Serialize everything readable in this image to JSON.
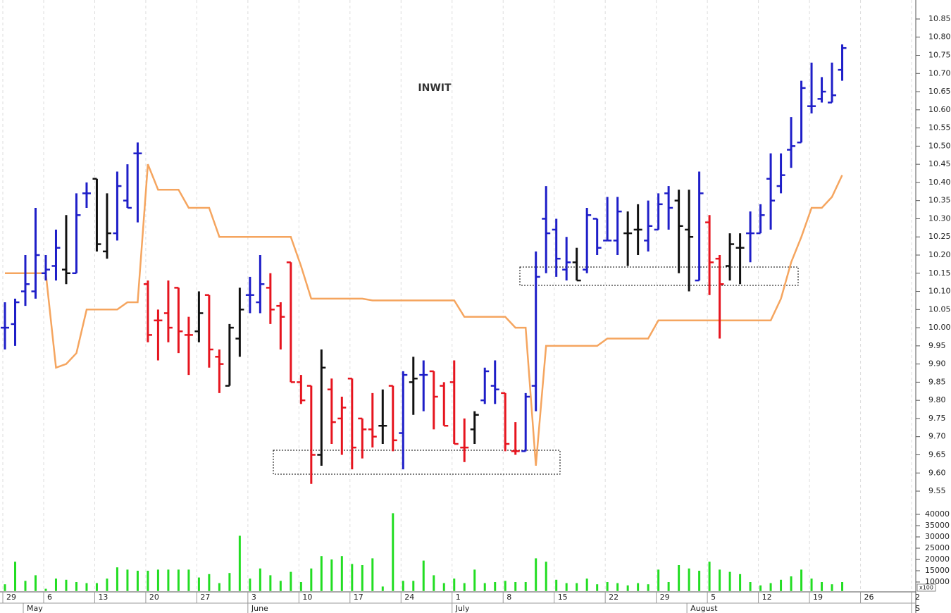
{
  "chart_data": {
    "type": "ohlc",
    "title": "INWIT",
    "categories": [
      "29",
      null,
      null,
      null,
      "6",
      null,
      null,
      null,
      null,
      "13",
      null,
      null,
      null,
      null,
      "20",
      null,
      null,
      null,
      null,
      "27",
      null,
      null,
      null,
      null,
      "3",
      null,
      null,
      null,
      null,
      "10",
      null,
      null,
      null,
      null,
      "17",
      null,
      null,
      null,
      null,
      "24",
      null,
      null,
      null,
      null,
      "1",
      null,
      null,
      null,
      null,
      "8",
      null,
      null,
      null,
      null,
      "15",
      null,
      null,
      null,
      null,
      "22",
      null,
      null,
      null,
      null,
      "29",
      null,
      null,
      null,
      null,
      "5",
      null,
      null,
      null,
      null,
      "12",
      null,
      null,
      null,
      null,
      "19",
      null,
      null,
      null,
      null,
      "26",
      null,
      null,
      null,
      null,
      "2"
    ],
    "months": [
      null,
      null,
      "May",
      null,
      null,
      null,
      null,
      null,
      null,
      null,
      null,
      null,
      null,
      null,
      null,
      null,
      null,
      null,
      null,
      null,
      null,
      null,
      null,
      null,
      "June",
      null,
      null,
      null,
      null,
      null,
      null,
      null,
      null,
      null,
      null,
      null,
      null,
      null,
      null,
      null,
      null,
      null,
      null,
      null,
      "July",
      null,
      null,
      null,
      null,
      null,
      null,
      null,
      null,
      null,
      null,
      null,
      null,
      null,
      null,
      null,
      null,
      null,
      null,
      null,
      null,
      null,
      null,
      "August",
      null,
      null,
      null,
      null,
      null,
      null,
      null,
      null,
      null,
      null,
      null,
      null,
      null,
      null,
      null,
      null,
      null,
      null,
      null,
      null,
      null,
      "S"
    ],
    "series": [
      {
        "open": [
          10.0,
          10.01,
          10.1,
          10.1,
          10.15,
          10.17,
          10.16,
          10.15,
          10.37,
          10.41,
          10.21,
          10.26,
          10.35,
          10.48,
          10.12,
          10.02,
          10.04,
          10.11,
          9.98,
          9.99,
          10.09,
          9.92,
          9.84,
          9.97,
          10.09,
          10.07,
          10.11,
          10.06,
          10.18,
          9.85,
          9.84,
          9.65,
          9.83,
          9.75,
          9.86,
          9.75,
          9.72,
          9.73,
          9.84,
          9.71,
          9.85,
          9.87,
          9.88,
          9.84,
          9.85,
          9.67,
          9.72,
          9.8,
          9.84,
          9.82,
          9.66,
          9.66,
          9.84,
          10.3,
          10.27,
          10.16,
          10.18,
          10.16,
          10.3,
          10.24,
          10.24,
          10.26,
          10.27,
          10.24,
          10.27,
          10.37,
          10.35,
          10.27,
          10.13,
          10.29,
          10.19,
          10.17,
          10.22,
          10.26,
          10.26,
          10.41,
          10.39,
          10.49,
          10.51,
          10.61,
          10.63,
          10.62,
          10.71,
          null,
          null,
          null,
          null,
          null,
          null,
          null
        ],
        "high": [
          10.07,
          10.08,
          10.2,
          10.33,
          10.2,
          10.27,
          10.31,
          10.37,
          10.4,
          10.41,
          10.37,
          10.43,
          10.45,
          10.51,
          10.13,
          10.05,
          10.13,
          10.11,
          10.03,
          10.1,
          10.09,
          9.94,
          10.01,
          10.11,
          10.14,
          10.2,
          10.15,
          10.07,
          10.18,
          9.87,
          9.84,
          9.94,
          9.86,
          9.81,
          9.86,
          9.75,
          9.82,
          9.83,
          9.84,
          9.88,
          9.92,
          9.91,
          9.88,
          9.85,
          9.91,
          9.75,
          9.77,
          9.89,
          9.91,
          9.82,
          9.74,
          9.82,
          10.21,
          10.39,
          10.3,
          10.25,
          10.22,
          10.33,
          10.3,
          10.36,
          10.36,
          10.32,
          10.34,
          10.35,
          10.37,
          10.39,
          10.38,
          10.38,
          10.43,
          10.31,
          10.2,
          10.26,
          10.26,
          10.32,
          10.34,
          10.48,
          10.48,
          10.58,
          10.68,
          10.73,
          10.69,
          10.73,
          10.78,
          null,
          null,
          null,
          null,
          null,
          null,
          null
        ],
        "low": [
          9.94,
          9.95,
          10.06,
          10.08,
          10.13,
          10.13,
          10.12,
          10.15,
          10.33,
          10.21,
          10.19,
          10.24,
          10.33,
          10.29,
          9.96,
          9.91,
          9.96,
          9.93,
          9.87,
          9.96,
          9.89,
          9.82,
          9.84,
          9.92,
          10.04,
          10.04,
          10.01,
          9.94,
          9.85,
          9.79,
          9.57,
          9.62,
          9.68,
          9.65,
          9.61,
          9.64,
          9.67,
          9.68,
          9.66,
          9.61,
          9.76,
          9.77,
          9.72,
          9.73,
          9.68,
          9.63,
          9.68,
          9.79,
          9.79,
          9.66,
          9.65,
          9.66,
          9.77,
          10.15,
          10.14,
          10.13,
          10.13,
          10.15,
          10.2,
          10.24,
          10.2,
          10.17,
          10.2,
          10.21,
          10.27,
          10.27,
          10.15,
          10.1,
          10.13,
          10.09,
          9.97,
          10.13,
          10.12,
          10.18,
          10.26,
          10.27,
          10.37,
          10.44,
          10.51,
          10.59,
          10.62,
          10.62,
          10.68,
          null,
          null,
          null,
          null,
          null,
          null,
          null
        ],
        "close": [
          10.0,
          10.07,
          10.12,
          10.2,
          10.16,
          10.22,
          10.15,
          10.31,
          10.37,
          10.23,
          10.26,
          10.39,
          10.33,
          10.48,
          9.98,
          10.02,
          10.0,
          9.99,
          9.98,
          10.04,
          9.94,
          9.9,
          10.0,
          10.05,
          10.09,
          10.12,
          10.05,
          10.03,
          9.85,
          9.8,
          9.65,
          9.89,
          9.74,
          9.78,
          9.67,
          9.72,
          9.7,
          9.73,
          9.69,
          9.87,
          9.86,
          9.87,
          9.81,
          9.73,
          9.68,
          9.67,
          9.76,
          9.88,
          9.83,
          9.68,
          9.66,
          9.81,
          10.14,
          10.26,
          10.19,
          10.18,
          10.13,
          10.31,
          10.22,
          10.24,
          10.32,
          10.26,
          10.27,
          10.28,
          10.34,
          10.33,
          10.28,
          10.25,
          10.37,
          10.18,
          10.12,
          10.23,
          10.22,
          10.26,
          10.31,
          10.35,
          10.42,
          10.5,
          10.66,
          10.61,
          10.65,
          10.64,
          10.77,
          null,
          null,
          null,
          null,
          null,
          null,
          null
        ],
        "colors": [
          "#1e1ec8",
          "#1e1ec8",
          "#1e1ec8",
          "#1e1ec8",
          "#1e1ec8",
          "#1e1ec8",
          "#111111",
          "#1e1ec8",
          "#1e1ec8",
          "#111111",
          "#111111",
          "#1e1ec8",
          "#1e1ec8",
          "#1e1ec8",
          "#e6141e",
          "#e6141e",
          "#e6141e",
          "#e6141e",
          "#e6141e",
          "#111111",
          "#e6141e",
          "#e6141e",
          "#111111",
          "#111111",
          "#1e1ec8",
          "#1e1ec8",
          "#e6141e",
          "#e6141e",
          "#e6141e",
          "#e6141e",
          "#e6141e",
          "#111111",
          "#e6141e",
          "#e6141e",
          "#e6141e",
          "#e6141e",
          "#e6141e",
          "#111111",
          "#e6141e",
          "#1e1ec8",
          "#111111",
          "#1e1ec8",
          "#e6141e",
          "#e6141e",
          "#e6141e",
          "#e6141e",
          "#111111",
          "#1e1ec8",
          "#1e1ec8",
          "#e6141e",
          "#e6141e",
          "#1e1ec8",
          "#1e1ec8",
          "#1e1ec8",
          "#1e1ec8",
          "#1e1ec8",
          "#111111",
          "#1e1ec8",
          "#1e1ec8",
          "#1e1ec8",
          "#1e1ec8",
          "#111111",
          "#111111",
          "#1e1ec8",
          "#1e1ec8",
          "#1e1ec8",
          "#111111",
          "#111111",
          "#1e1ec8",
          "#e6141e",
          "#e6141e",
          "#111111",
          "#111111",
          "#1e1ec8",
          "#1e1ec8",
          "#1e1ec8",
          "#1e1ec8",
          "#1e1ec8",
          "#1e1ec8",
          "#1e1ec8",
          "#1e1ec8",
          "#1e1ec8",
          "#1e1ec8",
          null,
          null,
          null,
          null,
          null,
          null,
          null
        ]
      }
    ],
    "line": {
      "color": "#f5a55f",
      "values": [
        10.15,
        10.15,
        10.15,
        10.15,
        10.15,
        9.89,
        9.9,
        9.93,
        10.05,
        10.05,
        10.05,
        10.05,
        10.07,
        10.07,
        10.45,
        10.38,
        10.38,
        10.38,
        10.33,
        10.33,
        10.33,
        10.25,
        10.25,
        10.25,
        10.25,
        10.25,
        10.25,
        10.25,
        10.25,
        10.17,
        10.08,
        10.08,
        10.08,
        10.08,
        10.08,
        10.08,
        10.075,
        10.075,
        10.075,
        10.075,
        10.075,
        10.075,
        10.075,
        10.075,
        10.075,
        10.03,
        10.03,
        10.03,
        10.03,
        10.03,
        10.0,
        10.0,
        9.62,
        9.95,
        9.95,
        9.95,
        9.95,
        9.95,
        9.95,
        9.97,
        9.97,
        9.97,
        9.97,
        9.97,
        10.02,
        10.02,
        10.02,
        10.02,
        10.02,
        10.02,
        10.02,
        10.02,
        10.02,
        10.02,
        10.02,
        10.02,
        10.08,
        10.18,
        10.25,
        10.33,
        10.33,
        10.36,
        10.42,
        null,
        null,
        null,
        null,
        null,
        null,
        null
      ]
    },
    "volume": {
      "color": "#22dd22",
      "unit_label": "x100",
      "values": [
        9000,
        19000,
        10500,
        13000,
        7000,
        11500,
        11000,
        10000,
        9500,
        9500,
        11500,
        16500,
        15500,
        15000,
        15000,
        15500,
        15500,
        15500,
        15500,
        12000,
        13500,
        9500,
        14000,
        30500,
        11500,
        16000,
        13000,
        10500,
        14500,
        10000,
        16000,
        21500,
        20000,
        21500,
        18000,
        17500,
        20500,
        8000,
        40500,
        10500,
        10500,
        19500,
        13000,
        9500,
        11500,
        9500,
        15500,
        9500,
        10000,
        10500,
        10000,
        10000,
        20500,
        19000,
        11000,
        9500,
        9500,
        11500,
        9000,
        10000,
        9500,
        8500,
        9500,
        9000,
        15500,
        10000,
        17500,
        16000,
        15000,
        19000,
        15500,
        14500,
        13500,
        10000,
        8500,
        9500,
        11000,
        12500,
        15500,
        11500,
        10000,
        9000,
        10000,
        null,
        null,
        null,
        null,
        null,
        null,
        null
      ],
      "ylim": [
        6000,
        42000
      ],
      "yticks": [
        10000,
        15000,
        20000,
        25000,
        30000,
        35000,
        40000
      ]
    },
    "ylim": [
      9.5,
      10.9
    ],
    "yticks": [
      9.55,
      {
        "value": 9.6,
        "label": "9.60"
      },
      9.65,
      {
        "value": 9.7,
        "label": "9.70"
      },
      9.75,
      {
        "value": 9.8,
        "label": "9.80"
      },
      9.85,
      {
        "value": 9.9,
        "label": "9.90"
      },
      9.95,
      {
        "value": 10,
        "label": "10.00"
      },
      10.05,
      {
        "value": 10.1,
        "label": "10.10"
      },
      10.15,
      {
        "value": 10.2,
        "label": "10.20"
      },
      10.25,
      {
        "value": 10.3,
        "label": "10.30"
      },
      10.35,
      {
        "value": 10.4,
        "label": "10.40"
      },
      10.45,
      {
        "value": 10.5,
        "label": "10.50"
      },
      10.55,
      {
        "value": 10.6,
        "label": "10.60"
      },
      10.65,
      {
        "value": 10.7,
        "label": "10.70"
      },
      10.75,
      {
        "value": 10.8,
        "label": "10.80"
      },
      10.85
    ],
    "grid": true
  }
}
